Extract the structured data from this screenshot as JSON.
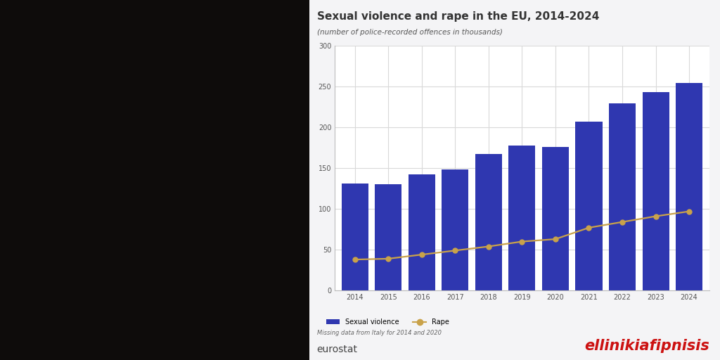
{
  "chart_data": {
    "type": "bar",
    "title": "Sexual violence and rape in the EU, 2014-2024",
    "subtitle": "(number of police-recorded offences in thousands)",
    "categories": [
      "2014",
      "2015",
      "2016",
      "2017",
      "2018",
      "2019",
      "2020",
      "2021",
      "2022",
      "2023",
      "2024"
    ],
    "series": [
      {
        "name": "Sexual violence",
        "type": "bar",
        "color": "#2f37b0",
        "values": [
          131,
          130,
          142,
          148,
          167,
          178,
          176,
          207,
          229,
          243,
          254
        ]
      },
      {
        "name": "Rape",
        "type": "line",
        "color": "#c9a24a",
        "marker": "o",
        "line_style": "solid",
        "values": [
          38,
          39,
          44,
          49,
          54,
          60,
          63,
          77,
          84,
          91,
          97
        ]
      }
    ],
    "ylim": [
      0,
      300
    ],
    "yticks": [
      0,
      50,
      100,
      150,
      200,
      250,
      300
    ],
    "grid": true,
    "legend": "upper left",
    "annotations": [
      "Missing data from Italy for 2014 and 2020",
      "eurostat",
      "ellinikiafipnisis"
    ]
  }
}
